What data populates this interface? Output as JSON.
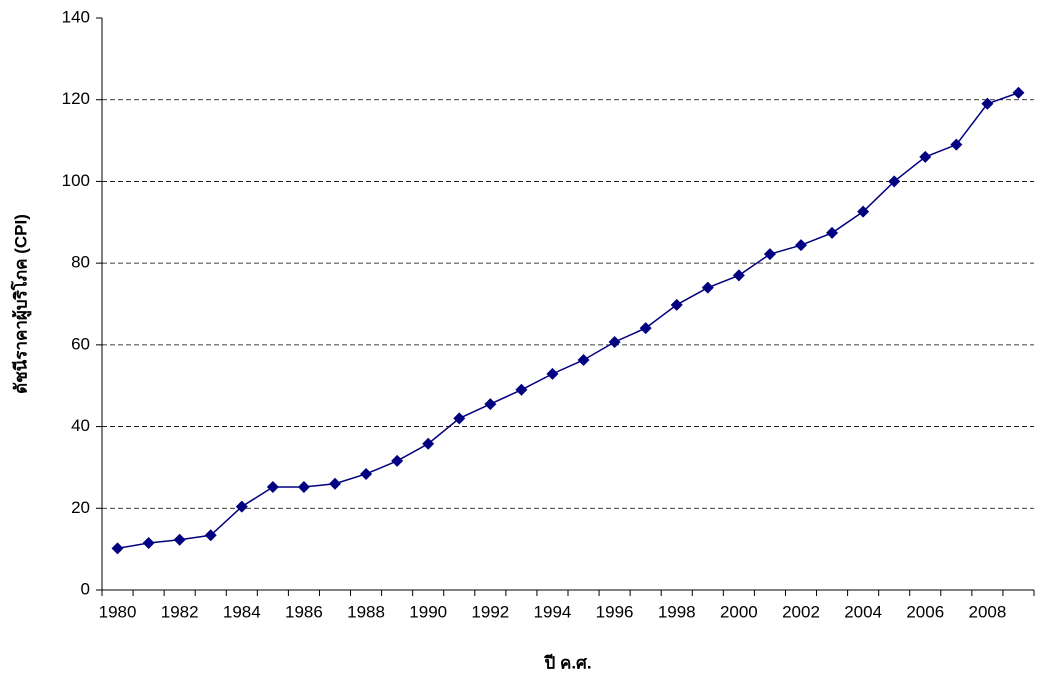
{
  "chart_data": {
    "type": "line",
    "x_label": "ปี ค.ศ.",
    "y_label": "ดัชนีราคาผู้บริโภค (CPI)",
    "categories": [
      "1980",
      null,
      "1982",
      null,
      "1984",
      null,
      "1986",
      null,
      "1988",
      null,
      "1990",
      null,
      "1992",
      null,
      "1994",
      null,
      "1996",
      null,
      "1998",
      null,
      "2000",
      null,
      "2002",
      null,
      "2004",
      null,
      "2006",
      null,
      "2008",
      null
    ],
    "series": [
      {
        "name": "CPI",
        "color": "#000080",
        "values": [
          10.2,
          11.5,
          12.3,
          13.4,
          20.4,
          25.2,
          25.2,
          26.0,
          28.4,
          31.6,
          35.8,
          42.0,
          45.5,
          49.0,
          52.9,
          56.3,
          60.7,
          64.1,
          69.8,
          74.0,
          77.0,
          82.2,
          84.4,
          87.4,
          92.6,
          100.0,
          106.0,
          109.0,
          119.0,
          121.7
        ]
      }
    ],
    "ylim": [
      0,
      140
    ],
    "yticks": [
      0,
      20,
      40,
      60,
      80,
      100,
      120,
      140
    ],
    "grid": true
  }
}
